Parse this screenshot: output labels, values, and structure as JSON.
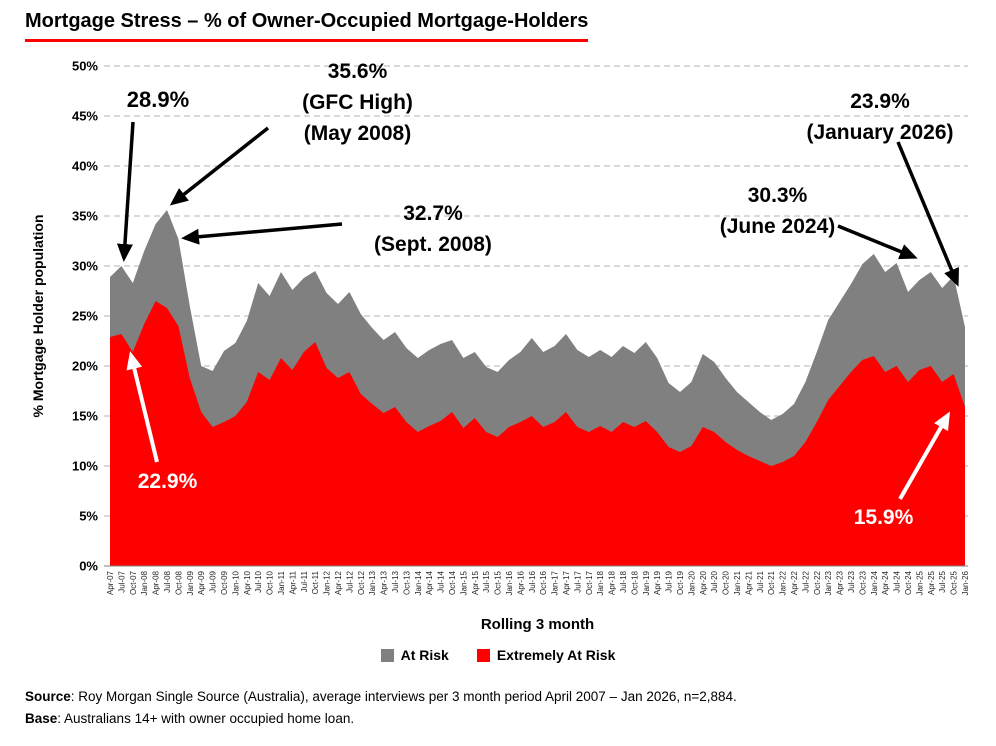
{
  "title": "Mortgage Stress – % of Owner-Occupied Mortgage-Holders",
  "chart_data": {
    "type": "area",
    "title": "Mortgage Stress – % of Owner-Occupied Mortgage-Holders",
    "xlabel": "Rolling 3 month",
    "ylabel": "% Mortgage Holder population",
    "ylim": [
      0,
      50
    ],
    "y_tick_labels": [
      "0%",
      "5%",
      "10%",
      "15%",
      "20%",
      "25%",
      "30%",
      "35%",
      "40%",
      "45%",
      "50%"
    ],
    "grid": "horizontal-dashed",
    "legend_position": "bottom",
    "categories": [
      "Apr-07",
      "Jul-07",
      "Oct-07",
      "Jan-08",
      "Apr-08",
      "Jul-08",
      "Oct-08",
      "Jan-09",
      "Apr-09",
      "Jul-09",
      "Oct-09",
      "Jan-10",
      "Apr-10",
      "Jul-10",
      "Oct-10",
      "Jan-11",
      "Apr-11",
      "Jul-11",
      "Oct-11",
      "Jan-12",
      "Apr-12",
      "Jul-12",
      "Oct-12",
      "Jan-13",
      "Apr-13",
      "Jul-13",
      "Oct-13",
      "Jan-14",
      "Apr-14",
      "Jul-14",
      "Oct-14",
      "Jan-15",
      "Apr-15",
      "Jul-15",
      "Oct-15",
      "Jan-16",
      "Apr-16",
      "Jul-16",
      "Oct-16",
      "Jan-17",
      "Apr-17",
      "Jul-17",
      "Oct-17",
      "Jan-18",
      "Apr-18",
      "Jul-18",
      "Oct-18",
      "Jan-19",
      "Apr-19",
      "Jul-19",
      "Oct-19",
      "Jan-20",
      "Apr-20",
      "Jul-20",
      "Oct-20",
      "Jan-21",
      "Apr-21",
      "Jul-21",
      "Oct-21",
      "Jan-22",
      "Apr-22",
      "Jul-22",
      "Oct-22",
      "Jan-23",
      "Apr-23",
      "Jul-23",
      "Oct-23",
      "Jan-24",
      "Apr-24",
      "Jul-24",
      "Oct-24",
      "Jan-25",
      "Apr-25",
      "Jul-25",
      "Oct-25",
      "Jan-26"
    ],
    "series": [
      {
        "name": "At Risk",
        "color": "#808080",
        "values": [
          28.9,
          30.0,
          28.3,
          31.5,
          34.2,
          35.6,
          32.7,
          26.0,
          20.0,
          19.5,
          21.5,
          22.3,
          24.5,
          28.3,
          27.0,
          29.4,
          27.6,
          28.8,
          29.5,
          27.3,
          26.2,
          27.4,
          25.2,
          23.8,
          22.6,
          23.4,
          21.8,
          20.8,
          21.6,
          22.2,
          22.6,
          20.8,
          21.4,
          19.9,
          19.4,
          20.6,
          21.4,
          22.8,
          21.4,
          22.0,
          23.2,
          21.6,
          20.9,
          21.6,
          20.9,
          22.0,
          21.3,
          22.4,
          20.8,
          18.3,
          17.4,
          18.4,
          21.2,
          20.4,
          18.8,
          17.4,
          16.4,
          15.4,
          14.6,
          15.2,
          16.2,
          18.4,
          21.4,
          24.6,
          26.4,
          28.2,
          30.2,
          31.2,
          29.4,
          30.3,
          27.4,
          28.6,
          29.4,
          27.8,
          29.0,
          23.9
        ]
      },
      {
        "name": "Extremely At Risk",
        "color": "#FF0000",
        "values": [
          22.9,
          23.2,
          21.4,
          24.2,
          26.5,
          25.8,
          24.0,
          18.8,
          15.4,
          13.9,
          14.4,
          15.0,
          16.4,
          19.4,
          18.6,
          20.8,
          19.6,
          21.4,
          22.4,
          19.8,
          18.8,
          19.4,
          17.2,
          16.2,
          15.3,
          15.9,
          14.4,
          13.4,
          14.0,
          14.5,
          15.4,
          13.8,
          14.8,
          13.4,
          12.9,
          13.9,
          14.4,
          15.0,
          13.9,
          14.4,
          15.4,
          13.9,
          13.4,
          14.0,
          13.4,
          14.4,
          13.9,
          14.5,
          13.4,
          11.9,
          11.4,
          12.0,
          13.9,
          13.4,
          12.4,
          11.6,
          11.0,
          10.5,
          10.0,
          10.4,
          11.0,
          12.4,
          14.4,
          16.6,
          18.0,
          19.4,
          20.6,
          21.0,
          19.4,
          20.0,
          18.4,
          19.6,
          20.0,
          18.4,
          19.2,
          15.9
        ]
      }
    ],
    "annotations": {
      "at_risk_start": {
        "lines": [
          "28.9%"
        ]
      },
      "gfc_high": {
        "lines": [
          "35.6%",
          "(GFC High)",
          "(May 2008)"
        ]
      },
      "sept_2008": {
        "lines": [
          "32.7%",
          "(Sept. 2008)"
        ]
      },
      "june_2024": {
        "lines": [
          "30.3%",
          "(June 2024)"
        ]
      },
      "january_2026": {
        "lines": [
          "23.9%",
          "(January 2026)"
        ]
      },
      "extremely_at_risk_start": {
        "lines": [
          "22.9%"
        ]
      },
      "extremely_at_risk_end": {
        "lines": [
          "15.9%"
        ]
      }
    }
  },
  "footer": {
    "source_label": "Source",
    "source_text": ": Roy Morgan Single Source (Australia), average interviews per 3 month period April 2007 – Jan 2026, n=2,884.",
    "base_label": "Base",
    "base_text": ": Australians 14+ with owner occupied home loan."
  },
  "colors": {
    "at_risk": "#808080",
    "extremely_at_risk": "#FF0000",
    "title_underline": "#FF0000",
    "gridline": "#b3b3b3"
  }
}
